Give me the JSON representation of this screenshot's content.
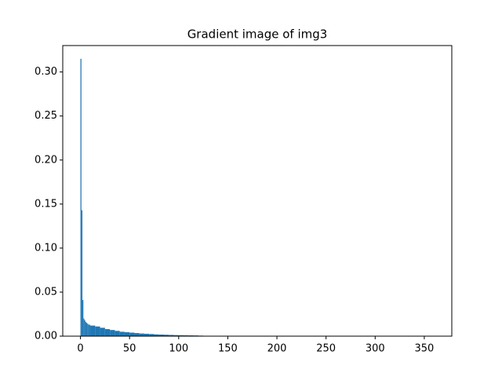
{
  "chart_data": {
    "type": "histogram",
    "title": "Gradient image of img3",
    "bins": [
      0,
      1,
      2,
      3,
      4,
      5,
      6,
      7,
      8,
      9,
      10,
      15,
      20,
      25,
      30,
      35,
      40,
      45,
      50,
      55,
      60,
      65,
      70,
      75,
      80,
      85,
      90,
      95,
      100,
      105,
      110,
      115,
      120,
      125,
      130,
      140,
      150,
      160,
      170,
      180,
      190,
      200,
      210,
      220,
      230,
      240,
      250,
      260,
      270,
      280,
      290,
      300,
      310,
      320,
      330,
      340,
      350,
      360
    ],
    "values": [
      0.315,
      0.143,
      0.041,
      0.02,
      0.018,
      0.016,
      0.015,
      0.014,
      0.013,
      0.013,
      0.012,
      0.011,
      0.0095,
      0.008,
      0.007,
      0.006,
      0.005,
      0.0045,
      0.004,
      0.0035,
      0.003,
      0.0027,
      0.0024,
      0.002,
      0.0018,
      0.0016,
      0.0014,
      0.0012,
      0.0011,
      0.001,
      0.0009,
      0.0008,
      0.0006,
      0.0003,
      0.0002,
      0.0001,
      0.0001,
      5e-05,
      4e-05,
      3e-05,
      3e-05,
      3e-05,
      3e-05,
      3e-05,
      3e-05,
      3e-05,
      3e-05,
      3e-05,
      3e-05,
      3e-05,
      3e-05,
      3e-05,
      3e-05,
      3e-05,
      3e-05,
      3e-05,
      3e-05
    ],
    "color": "#1f77b4",
    "xlim": [
      -18,
      378
    ],
    "xticks": [
      0,
      50,
      100,
      150,
      200,
      250,
      300,
      350
    ],
    "ylim": [
      0,
      0.33
    ],
    "yticks": [
      {
        "value": 0,
        "label": "0.00"
      },
      0.05,
      {
        "value": 0.1,
        "label": "0.10"
      },
      0.15,
      {
        "value": 0.2,
        "label": "0.20"
      },
      0.25,
      {
        "value": 0.3,
        "label": "0.30"
      }
    ],
    "grid": false
  }
}
